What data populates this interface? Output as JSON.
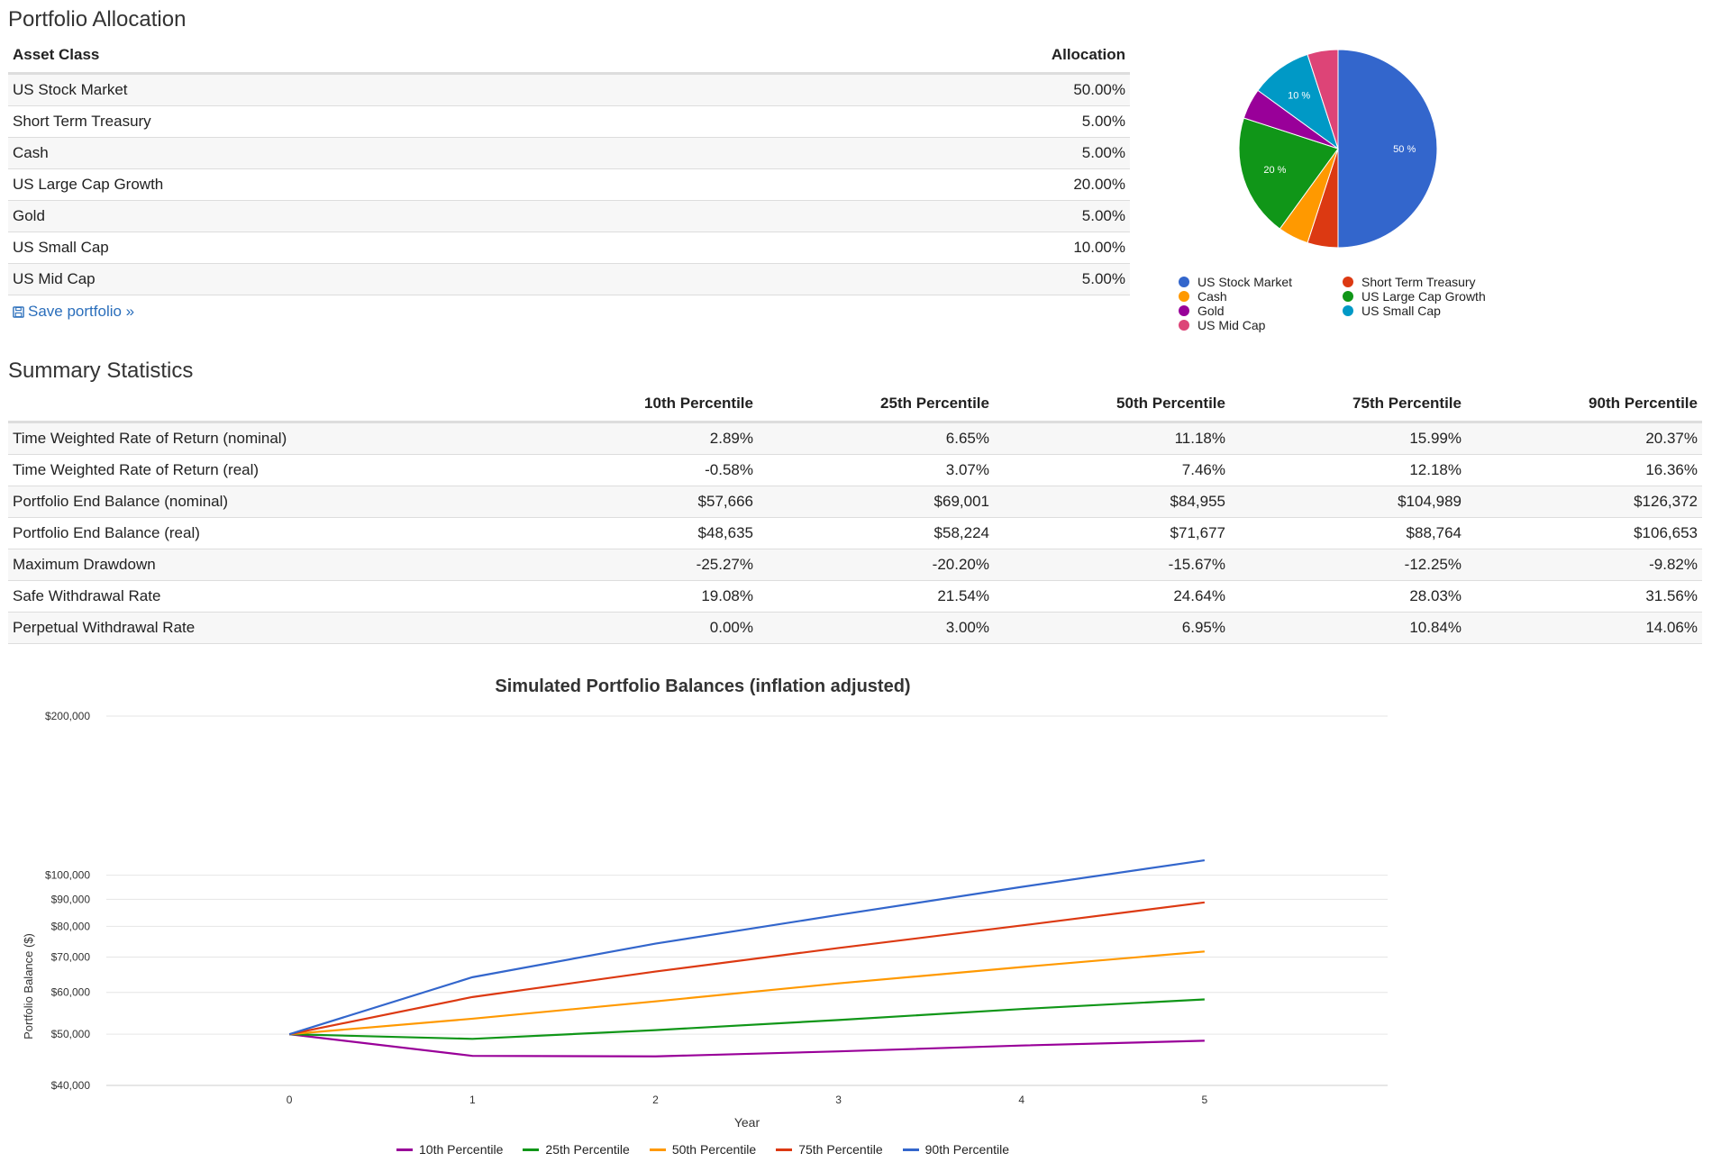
{
  "portfolio_allocation": {
    "title": "Portfolio Allocation",
    "columns": [
      "Asset Class",
      "Allocation"
    ],
    "rows": [
      {
        "asset": "US Stock Market",
        "allocation": "50.00%"
      },
      {
        "asset": "Short Term Treasury",
        "allocation": "5.00%"
      },
      {
        "asset": "Cash",
        "allocation": "5.00%"
      },
      {
        "asset": "US Large Cap Growth",
        "allocation": "20.00%"
      },
      {
        "asset": "Gold",
        "allocation": "5.00%"
      },
      {
        "asset": "US Small Cap",
        "allocation": "10.00%"
      },
      {
        "asset": "US Mid Cap",
        "allocation": "5.00%"
      }
    ],
    "save_link": "Save portfolio »",
    "save_icon": "floppy-disk-icon"
  },
  "summary": {
    "title": "Summary Statistics",
    "columns": [
      "",
      "10th Percentile",
      "25th Percentile",
      "50th Percentile",
      "75th Percentile",
      "90th Percentile"
    ],
    "rows": [
      {
        "label": "Time Weighted Rate of Return (nominal)",
        "values": [
          "2.89%",
          "6.65%",
          "11.18%",
          "15.99%",
          "20.37%"
        ]
      },
      {
        "label": "Time Weighted Rate of Return (real)",
        "values": [
          "-0.58%",
          "3.07%",
          "7.46%",
          "12.18%",
          "16.36%"
        ]
      },
      {
        "label": "Portfolio End Balance (nominal)",
        "values": [
          "$57,666",
          "$69,001",
          "$84,955",
          "$104,989",
          "$126,372"
        ]
      },
      {
        "label": "Portfolio End Balance (real)",
        "values": [
          "$48,635",
          "$58,224",
          "$71,677",
          "$88,764",
          "$106,653"
        ]
      },
      {
        "label": "Maximum Drawdown",
        "values": [
          "-25.27%",
          "-20.20%",
          "-15.67%",
          "-12.25%",
          "-9.82%"
        ]
      },
      {
        "label": "Safe Withdrawal Rate",
        "values": [
          "19.08%",
          "21.54%",
          "24.64%",
          "28.03%",
          "31.56%"
        ]
      },
      {
        "label": "Perpetual Withdrawal Rate",
        "values": [
          "0.00%",
          "3.00%",
          "6.95%",
          "10.84%",
          "14.06%"
        ]
      }
    ]
  },
  "chart_data": [
    {
      "type": "pie",
      "title": "",
      "labels": [
        "US Stock Market",
        "Short Term Treasury",
        "Cash",
        "US Large Cap Growth",
        "Gold",
        "US Small Cap",
        "US Mid Cap"
      ],
      "values": [
        50,
        5,
        5,
        20,
        5,
        10,
        5
      ],
      "slice_labels": [
        "50 %",
        "",
        "",
        "20 %",
        "",
        "10 %",
        ""
      ],
      "colors": [
        "#3366cc",
        "#dc3912",
        "#ff9900",
        "#109618",
        "#990099",
        "#0099c6",
        "#dd4477"
      ],
      "legend": "bottom"
    },
    {
      "type": "line",
      "title": "Simulated Portfolio Balances (inflation adjusted)",
      "xlabel": "Year",
      "ylabel": "Portfolio Balance ($)",
      "y_scale": "log",
      "ylim": [
        40000,
        200000
      ],
      "x": [
        0,
        1,
        2,
        3,
        4,
        5
      ],
      "x_ticks": [
        "0",
        "1",
        "2",
        "3",
        "4",
        "5"
      ],
      "y_ticks": [
        {
          "value": 40000,
          "label": "$40,000"
        },
        {
          "value": 50000,
          "label": "$50,000"
        },
        {
          "value": 60000,
          "label": "$60,000"
        },
        {
          "value": 70000,
          "label": "$70,000"
        },
        {
          "value": 80000,
          "label": "$80,000"
        },
        {
          "value": 90000,
          "label": "$90,000"
        },
        {
          "value": 100000,
          "label": "$100,000"
        },
        {
          "value": 200000,
          "label": "$200,000"
        }
      ],
      "grid": true,
      "legend": "bottom",
      "series": [
        {
          "name": "10th Percentile",
          "color": "#990099",
          "values": [
            50000,
            45500,
            45400,
            46400,
            47600,
            48600
          ]
        },
        {
          "name": "25th Percentile",
          "color": "#109618",
          "values": [
            50000,
            49000,
            50900,
            53200,
            55800,
            58200
          ]
        },
        {
          "name": "50th Percentile",
          "color": "#ff9900",
          "values": [
            50000,
            53500,
            57700,
            62400,
            67000,
            71700
          ]
        },
        {
          "name": "75th Percentile",
          "color": "#dc3912",
          "values": [
            50000,
            58800,
            65700,
            72800,
            80300,
            88800
          ]
        },
        {
          "name": "90th Percentile",
          "color": "#3366cc",
          "values": [
            50000,
            64100,
            74200,
            84100,
            95000,
            106700
          ]
        }
      ]
    }
  ]
}
